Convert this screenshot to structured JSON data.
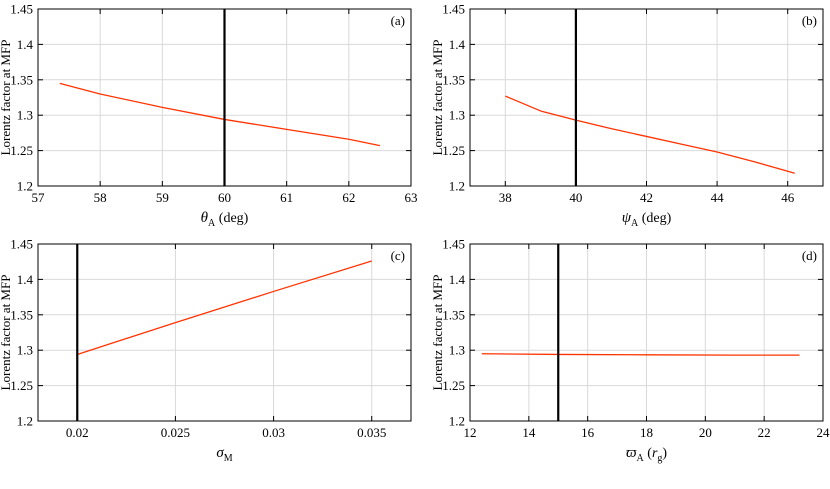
{
  "chart_data": [
    {
      "type": "line",
      "panel_label": "(a)",
      "ylabel": "Lorentz factor at MFP",
      "xlabel": {
        "symbol": "θ",
        "sub": "A",
        "unit": " (deg)"
      },
      "xlim": [
        57,
        63
      ],
      "ylim": [
        1.2,
        1.45
      ],
      "xticks": [
        57,
        58,
        59,
        60,
        61,
        62,
        63
      ],
      "xticklabels": [
        "57",
        "58",
        "59",
        "60",
        "61",
        "62",
        "63"
      ],
      "yticks": [
        1.2,
        1.25,
        1.3,
        1.35,
        1.4,
        1.45
      ],
      "yticklabels": [
        "1.2",
        "1.25",
        "1.3",
        "1.35",
        "1.4",
        "1.45"
      ],
      "grid": true,
      "vline": 60,
      "series": [
        {
          "name": "Lorentz factor",
          "color": "#ff3300",
          "x": [
            57.35,
            58.0,
            59.0,
            60.0,
            61.0,
            62.0,
            62.5
          ],
          "y": [
            1.345,
            1.33,
            1.311,
            1.294,
            1.28,
            1.266,
            1.257
          ]
        }
      ]
    },
    {
      "type": "line",
      "panel_label": "(b)",
      "ylabel": "Lorentz factor at MFP",
      "xlabel": {
        "symbol": "ψ",
        "sub": "A",
        "unit": " (deg)"
      },
      "xlim": [
        37,
        47
      ],
      "ylim": [
        1.2,
        1.45
      ],
      "xticks": [
        38,
        40,
        42,
        44,
        46
      ],
      "xticklabels": [
        "38",
        "40",
        "42",
        "44",
        "46"
      ],
      "yticks": [
        1.2,
        1.25,
        1.3,
        1.35,
        1.4,
        1.45
      ],
      "yticklabels": [
        "1.2",
        "1.25",
        "1.3",
        "1.35",
        "1.4",
        "1.45"
      ],
      "grid": true,
      "vline": 40,
      "series": [
        {
          "name": "Lorentz factor",
          "color": "#ff3300",
          "x": [
            38.0,
            39.0,
            40.0,
            41.0,
            42.0,
            43.0,
            44.0,
            45.0,
            46.2
          ],
          "y": [
            1.327,
            1.306,
            1.293,
            1.281,
            1.27,
            1.259,
            1.248,
            1.235,
            1.218
          ]
        }
      ]
    },
    {
      "type": "line",
      "panel_label": "(c)",
      "ylabel": "Lorentz factor at MFP",
      "xlabel": {
        "symbol": "σ",
        "sub": "M",
        "unit": ""
      },
      "xlim": [
        0.018,
        0.037
      ],
      "ylim": [
        1.2,
        1.45
      ],
      "xticks": [
        0.02,
        0.025,
        0.03,
        0.035
      ],
      "xticklabels": [
        "0.02",
        "0.025",
        "0.03",
        "0.035"
      ],
      "yticks": [
        1.2,
        1.25,
        1.3,
        1.35,
        1.4,
        1.45
      ],
      "yticklabels": [
        "1.2",
        "1.25",
        "1.3",
        "1.35",
        "1.4",
        "1.45"
      ],
      "grid": true,
      "vline": 0.02,
      "series": [
        {
          "name": "Lorentz factor",
          "color": "#ff3300",
          "x": [
            0.02,
            0.025,
            0.03,
            0.035
          ],
          "y": [
            1.294,
            1.339,
            1.383,
            1.426
          ]
        }
      ]
    },
    {
      "type": "line",
      "panel_label": "(d)",
      "ylabel": "Lorentz factor at MFP",
      "xlabel": {
        "symbol": "ϖ",
        "sub": "A",
        "unit": " (",
        "unit_italic": "r",
        "unit_italic_sub": "g",
        "unit_close": ")"
      },
      "xlim": [
        12,
        24
      ],
      "ylim": [
        1.2,
        1.45
      ],
      "xticks": [
        12,
        14,
        16,
        18,
        20,
        22,
        24
      ],
      "xticklabels": [
        "12",
        "14",
        "16",
        "18",
        "20",
        "22",
        "24"
      ],
      "yticks": [
        1.2,
        1.25,
        1.3,
        1.35,
        1.4,
        1.45
      ],
      "yticklabels": [
        "1.2",
        "1.25",
        "1.3",
        "1.35",
        "1.4",
        "1.45"
      ],
      "grid": true,
      "vline": 15,
      "series": [
        {
          "name": "Lorentz factor",
          "color": "#ff3300",
          "x": [
            12.4,
            15.0,
            18.0,
            21.0,
            23.2
          ],
          "y": [
            1.295,
            1.294,
            1.2935,
            1.293,
            1.293
          ]
        }
      ]
    }
  ]
}
